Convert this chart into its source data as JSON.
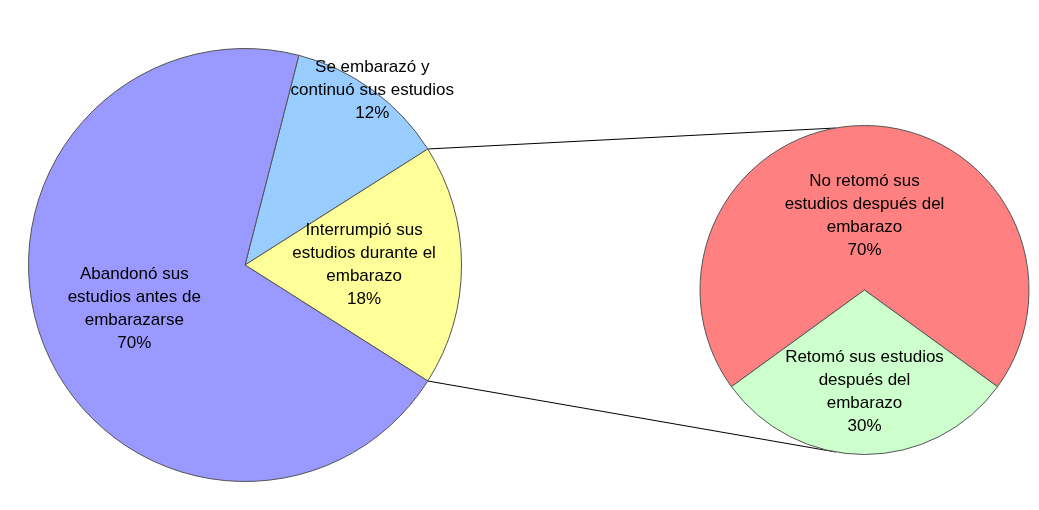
{
  "chart_data": [
    {
      "type": "pie",
      "categories": [
        "Se embarazó y continuó sus estudios",
        "Interrumpió sus estudios durante el embarazo",
        "Abandonó sus estudios antes de embarazarse"
      ],
      "values": [
        12,
        18,
        70
      ],
      "colors": [
        "#99ccff",
        "#ffff99",
        "#9999ff"
      ],
      "value_labels": [
        "12%",
        "18%",
        "70%"
      ]
    },
    {
      "type": "pie",
      "categories": [
        "No retomó sus estudios después del embarazo",
        "Retomó sus estudios después del embarazo"
      ],
      "values": [
        70,
        30
      ],
      "colors": [
        "#ff8080",
        "#ccffcc"
      ],
      "value_labels": [
        "70%",
        "30%"
      ]
    }
  ]
}
